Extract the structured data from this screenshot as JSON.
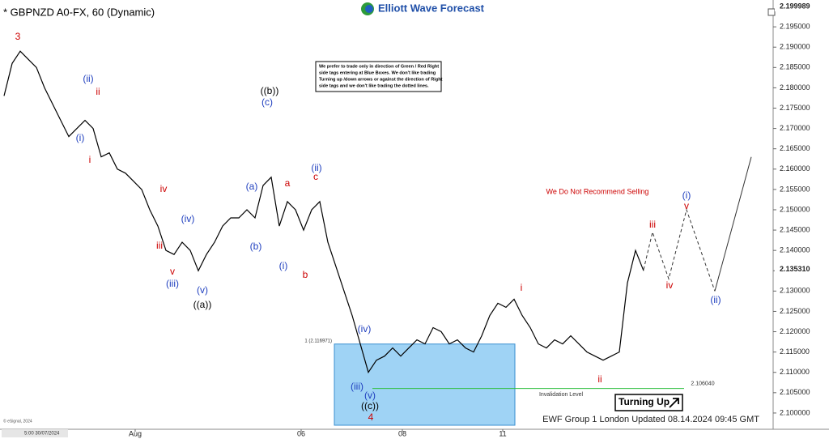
{
  "chart_data": {
    "type": "line",
    "title": "* GBPNZD A0-FX, 60 (Dynamic)",
    "brand": "Elliott Wave Forecast",
    "x": [
      0,
      1,
      2,
      3,
      4,
      5,
      6,
      7,
      8,
      9,
      10,
      11,
      12,
      13,
      14,
      15,
      16,
      17,
      18,
      19,
      20,
      21,
      22,
      23,
      24,
      25,
      26,
      27,
      28,
      29,
      30,
      31,
      32,
      33,
      34,
      35,
      36,
      37,
      38,
      39,
      40,
      41,
      42,
      43,
      44,
      45,
      46,
      47,
      48,
      49,
      50,
      51,
      52,
      53,
      54,
      55,
      56,
      57,
      58,
      59,
      60,
      61,
      62,
      63,
      64,
      65,
      66,
      67,
      68,
      69,
      70,
      71,
      72,
      73,
      74,
      75,
      76,
      77,
      78,
      79
    ],
    "values": [
      2.178,
      2.186,
      2.189,
      2.187,
      2.185,
      2.18,
      2.176,
      2.172,
      2.168,
      2.17,
      2.172,
      2.17,
      2.163,
      2.164,
      2.16,
      2.159,
      2.157,
      2.155,
      2.15,
      2.146,
      2.14,
      2.139,
      2.142,
      2.14,
      2.135,
      2.139,
      2.142,
      2.146,
      2.148,
      2.148,
      2.15,
      2.148,
      2.156,
      2.158,
      2.146,
      2.152,
      2.15,
      2.145,
      2.15,
      2.152,
      2.142,
      2.136,
      2.13,
      2.124,
      2.117,
      2.11,
      2.113,
      2.114,
      2.116,
      2.114,
      2.116,
      2.118,
      2.117,
      2.121,
      2.12,
      2.117,
      2.118,
      2.116,
      2.115,
      2.119,
      2.124,
      2.127,
      2.126,
      2.128,
      2.124,
      2.121,
      2.117,
      2.116,
      2.118,
      2.117,
      2.119,
      2.117,
      2.115,
      2.114,
      2.113,
      2.114,
      2.115,
      2.132,
      2.14,
      2.135
    ],
    "color": "#000000",
    "projection": {
      "x": [
        79,
        80.1,
        82.1,
        84.3,
        87.8,
        92.3
      ],
      "values": [
        2.1353,
        2.1445,
        2.133,
        2.15,
        2.13,
        2.163
      ],
      "color": "#333333"
    },
    "xlim": [
      -0.5,
      95
    ],
    "xticks": [
      {
        "value": 16.2,
        "label": "Aug"
      },
      {
        "value": 36.7,
        "label": "06"
      },
      {
        "value": 49.2,
        "label": "08"
      },
      {
        "value": 61.6,
        "label": "11"
      }
    ],
    "ylim": [
      2.096,
      2.2016
    ],
    "yticks": [
      {
        "value": 2.1,
        "label": "2.100000"
      },
      {
        "value": 2.105,
        "label": "2.105000"
      },
      {
        "value": 2.11,
        "label": "2.110000"
      },
      {
        "value": 2.115,
        "label": "2.115000"
      },
      {
        "value": 2.12,
        "label": "2.120000"
      },
      {
        "value": 2.125,
        "label": "2.125000"
      },
      {
        "value": 2.13,
        "label": "2.130000"
      },
      {
        "value": 2.135,
        "label": "2.135000"
      },
      {
        "value": 2.14,
        "label": "2.140000"
      },
      {
        "value": 2.145,
        "label": "2.145000"
      },
      {
        "value": 2.15,
        "label": "2.150000"
      },
      {
        "value": 2.155,
        "label": "2.155000"
      },
      {
        "value": 2.16,
        "label": "2.160000"
      },
      {
        "value": 2.165,
        "label": "2.165000"
      },
      {
        "value": 2.17,
        "label": "2.170000"
      },
      {
        "value": 2.175,
        "label": "2.175000"
      },
      {
        "value": 2.18,
        "label": "2.180000"
      },
      {
        "value": 2.185,
        "label": "2.185000"
      },
      {
        "value": 2.19,
        "label": "2.190000"
      },
      {
        "value": 2.195,
        "label": "2.195000"
      }
    ],
    "top_price": {
      "value": 2.199989,
      "label": "2.199989"
    },
    "last_price": {
      "value": 2.13531,
      "label": "2.135310"
    },
    "blue_box": {
      "value": 2.116971,
      "label": "1 (2.116971)"
    },
    "invalidation": {
      "value": 2.10604,
      "label": "2.106040",
      "text": "Invalidation Level"
    },
    "note": [
      "We prefer to trade only in direction of Green / Red Right",
      "side tags entering at Blue Boxes. We don't like trading",
      "Turning up /down arrows or against the direction of Right",
      "side tags and we don't like trading the dotted lines."
    ],
    "warning": "We Do Not Recommend Selling",
    "turning": "Turning Up",
    "footer": "EWF Group 1 London Updated 08.14.2024 09:45 GMT",
    "copyright": "© eSignal, 2024",
    "start_date": "5:00 30/07/2024",
    "wave_labels": [
      {
        "text": "3",
        "color": "#cc0000"
      },
      {
        "text": "(ii)",
        "color": "#1f3fbf"
      },
      {
        "text": "ii",
        "color": "#cc0000"
      },
      {
        "text": "(i)",
        "color": "#1f3fbf"
      },
      {
        "text": "i",
        "color": "#cc0000"
      },
      {
        "text": "iv",
        "color": "#cc0000"
      },
      {
        "text": "iii",
        "color": "#cc0000"
      },
      {
        "text": "(iv)",
        "color": "#1f3fbf"
      },
      {
        "text": "v",
        "color": "#cc0000"
      },
      {
        "text": "(iii)",
        "color": "#1f3fbf"
      },
      {
        "text": "(v)",
        "color": "#1f3fbf"
      },
      {
        "text": "((a))",
        "color": "#000000"
      },
      {
        "text": "((b))",
        "color": "#000000"
      },
      {
        "text": "(c)",
        "color": "#1f3fbf"
      },
      {
        "text": "(a)",
        "color": "#1f3fbf"
      },
      {
        "text": "(b)",
        "color": "#1f3fbf"
      },
      {
        "text": "a",
        "color": "#cc0000"
      },
      {
        "text": "(i)",
        "color": "#1f3fbf"
      },
      {
        "text": "b",
        "color": "#cc0000"
      },
      {
        "text": "(ii)",
        "color": "#1f3fbf"
      },
      {
        "text": "c",
        "color": "#cc0000"
      },
      {
        "text": "(iv)",
        "color": "#1f3fbf"
      },
      {
        "text": "(iii)",
        "color": "#1f3fbf"
      },
      {
        "text": "(v)",
        "color": "#1f3fbf"
      },
      {
        "text": "((c))",
        "color": "#000000"
      },
      {
        "text": "4",
        "color": "#cc0000"
      },
      {
        "text": "i",
        "color": "#cc0000"
      },
      {
        "text": "ii",
        "color": "#cc0000"
      },
      {
        "text": "iii",
        "color": "#cc0000"
      },
      {
        "text": "iv",
        "color": "#cc0000"
      },
      {
        "text": "(i)",
        "color": "#1f3fbf"
      },
      {
        "text": "v",
        "color": "#cc0000"
      },
      {
        "text": "(ii)",
        "color": "#1f3fbf"
      }
    ]
  }
}
